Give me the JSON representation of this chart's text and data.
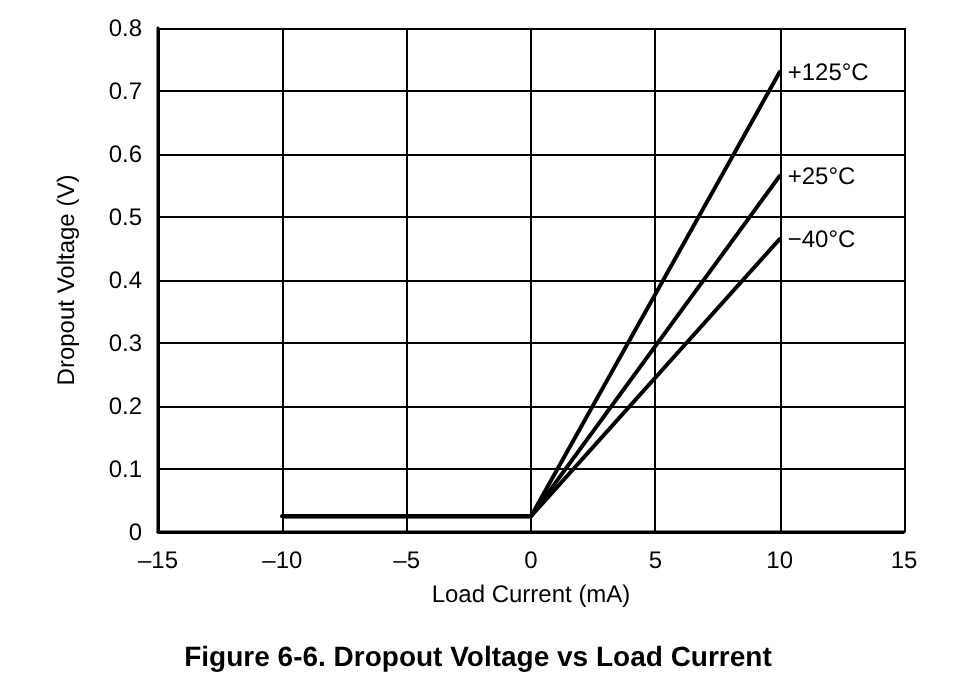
{
  "chart_data": {
    "type": "line",
    "title": "Figure 6-6. Dropout Voltage vs Load Current",
    "xlabel": "Load Current (mA)",
    "ylabel": "Dropout Voltage (V)",
    "x": [
      -10,
      0,
      10
    ],
    "series": [
      {
        "name": "+125°C",
        "color": "#000000",
        "values": [
          0.025,
          0.025,
          0.73
        ]
      },
      {
        "name": "+25°C",
        "color": "#000000",
        "values": [
          0.025,
          0.025,
          0.565
        ]
      },
      {
        "name": "−40°C",
        "color": "#000000",
        "values": [
          0.025,
          0.025,
          0.465
        ]
      }
    ],
    "xlim": [
      -15,
      15
    ],
    "xticks": [
      {
        "value": -15,
        "label": "–15"
      },
      {
        "value": -10,
        "label": "–10"
      },
      {
        "value": -5,
        "label": "–5"
      },
      0,
      5,
      10,
      15
    ],
    "ylim": [
      0,
      0.8
    ],
    "yticks": [
      0,
      0.1,
      0.2,
      0.3,
      0.4,
      0.5,
      0.6,
      0.7,
      0.8
    ],
    "grid": true,
    "legend": false,
    "marker": "none",
    "line_style": "solid"
  }
}
